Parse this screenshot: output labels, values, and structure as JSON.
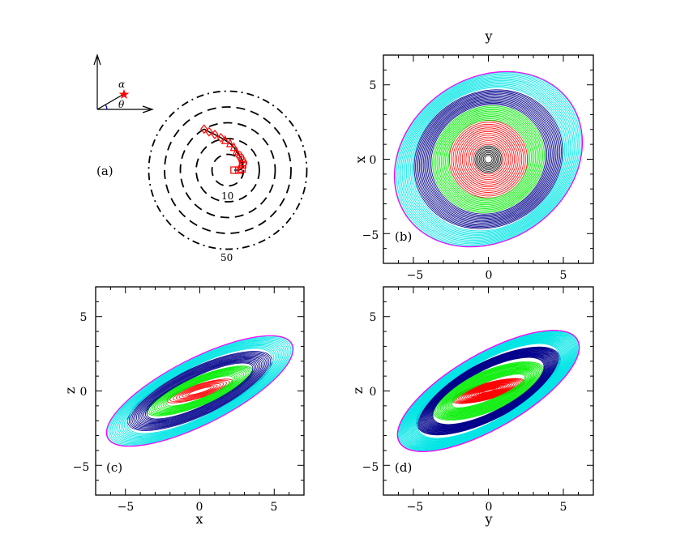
{
  "figure": {
    "panels": {
      "a": {
        "label": "(a)",
        "alpha_symbol": "α",
        "theta_symbol": "θ",
        "ring_label_inner": "10",
        "ring_label_outer": "50"
      },
      "b": {
        "label": "(b)",
        "xlabel_top": "y",
        "ylabel": "x"
      },
      "c": {
        "label": "(c)",
        "xlabel": "x",
        "ylabel": "z"
      },
      "d": {
        "label": "(d)",
        "xlabel": "y",
        "ylabel": "z"
      }
    },
    "ticks": [
      "−5",
      "0",
      "5"
    ],
    "colors": {
      "black": "#000000",
      "red": "#ff0000",
      "green": "#00ee00",
      "blue": "#00008b",
      "cyan": "#00e5e5",
      "magenta": "#ff00ff"
    }
  },
  "chart_data": [
    {
      "panel": "a",
      "type": "scatter",
      "description_items": [
        "ring radii",
        "track"
      ],
      "rings": {
        "radii": [
          10,
          20,
          30,
          40,
          50
        ],
        "labels": [
          "10",
          "50"
        ],
        "styles": [
          "dash",
          "dash",
          "dash",
          "dash",
          "dashdot"
        ]
      },
      "series": [
        {
          "marker": "square",
          "points_polar_deg": [
            [
              0,
              4
            ],
            [
              0,
              7
            ],
            [
              5,
              9
            ],
            [
              20,
              10
            ]
          ]
        },
        {
          "marker": "circle",
          "points_polar_deg": [
            [
              25,
              11
            ],
            [
              35,
              11
            ],
            [
              45,
              11.5
            ],
            [
              55,
              12
            ]
          ]
        },
        {
          "marker": "triangle",
          "points_polar_deg": [
            [
              65,
              13
            ],
            [
              75,
              15
            ],
            [
              85,
              17
            ],
            [
              95,
              19
            ]
          ]
        },
        {
          "marker": "diamond",
          "points_polar_deg": [
            [
              102,
              21
            ],
            [
              110,
              24
            ],
            [
              116,
              27
            ],
            [
              120,
              30
            ]
          ]
        }
      ]
    },
    {
      "panel": "b",
      "type": "contour",
      "xlabel": "y",
      "ylabel": "x",
      "xlim": [
        -7,
        7
      ],
      "ylim": [
        -7,
        7
      ],
      "xticks": [
        -5,
        0,
        5
      ],
      "yticks": [
        -5,
        0,
        5
      ],
      "shells": [
        {
          "color": "black",
          "a": [
            0.25,
            0.9
          ],
          "b": [
            0.25,
            0.9
          ],
          "angle": 0,
          "count": 8
        },
        {
          "color": "red",
          "a": [
            1.0,
            2.6
          ],
          "b": [
            1.0,
            2.6
          ],
          "angle": 0,
          "count": 14
        },
        {
          "color": "green",
          "a": [
            2.7,
            3.8
          ],
          "b": [
            2.6,
            3.5
          ],
          "angle": -30,
          "count": 12
        },
        {
          "color": "blue",
          "a": [
            3.9,
            5.1
          ],
          "b": [
            3.6,
            4.5
          ],
          "angle": -30,
          "count": 14
        },
        {
          "color": "cyan",
          "a": [
            5.2,
            6.6
          ],
          "b": [
            4.6,
            5.4
          ],
          "angle": -35,
          "count": 14
        },
        {
          "color": "magenta",
          "a": [
            6.65,
            6.65
          ],
          "b": [
            5.45,
            5.45
          ],
          "angle": -35,
          "count": 1
        }
      ]
    },
    {
      "panel": "c",
      "type": "contour",
      "xlabel": "x",
      "ylabel": "z",
      "xlim": [
        -7,
        7
      ],
      "ylim": [
        -7,
        7
      ],
      "xticks": [
        -5,
        0,
        5
      ],
      "yticks": [
        -5,
        0,
        5
      ],
      "shells": [
        {
          "color": "red",
          "a": [
            0.8,
            2.3
          ],
          "b": [
            0.12,
            0.45
          ],
          "angle": -17,
          "count": 8
        },
        {
          "color": "green",
          "a": [
            2.4,
            3.8
          ],
          "b": [
            0.5,
            0.95
          ],
          "angle": -22,
          "count": 12
        },
        {
          "color": "blue",
          "a": [
            3.9,
            5.3
          ],
          "b": [
            1.0,
            1.6
          ],
          "angle": -25,
          "count": 14
        },
        {
          "color": "cyan",
          "a": [
            5.4,
            6.9
          ],
          "b": [
            1.65,
            2.15
          ],
          "angle": -27,
          "count": 14
        },
        {
          "color": "magenta",
          "a": [
            6.95,
            6.95
          ],
          "b": [
            2.2,
            2.2
          ],
          "angle": -27,
          "count": 1
        }
      ]
    },
    {
      "panel": "d",
      "type": "contour",
      "xlabel": "y",
      "ylabel": "z",
      "xlim": [
        -7,
        7
      ],
      "ylim": [
        -7,
        7
      ],
      "xticks": [
        -5,
        0,
        5
      ],
      "yticks": [
        -5,
        0,
        5
      ],
      "shells": [
        {
          "color": "red",
          "a": [
            0.4,
            2.5
          ],
          "b": [
            0.05,
            0.55
          ],
          "angle": -15,
          "count": 20
        },
        {
          "color": "green",
          "a": [
            2.6,
            4.0
          ],
          "b": [
            0.6,
            1.35
          ],
          "angle": -22,
          "count": 18
        },
        {
          "color": "blue",
          "a": [
            4.1,
            5.3
          ],
          "b": [
            1.4,
            1.9
          ],
          "angle": -27,
          "count": 22
        },
        {
          "color": "cyan",
          "a": [
            5.35,
            6.8
          ],
          "b": [
            1.95,
            2.45
          ],
          "angle": -30,
          "count": 24
        },
        {
          "color": "magenta",
          "a": [
            6.85,
            6.85
          ],
          "b": [
            2.5,
            2.5
          ],
          "angle": -30,
          "count": 2
        }
      ]
    }
  ]
}
